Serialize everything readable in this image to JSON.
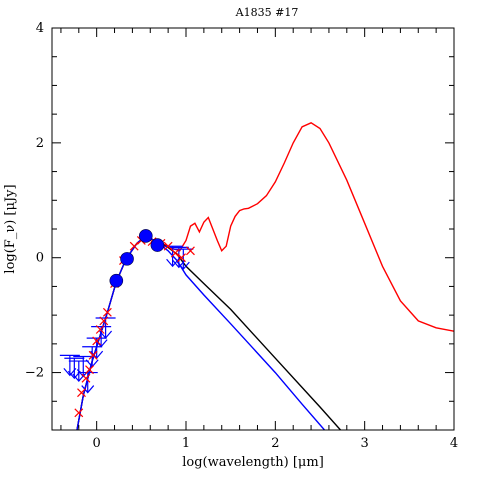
{
  "chart_data": {
    "type": "line",
    "title": "A1835  #17",
    "xlabel": "log(wavelength) [μm]",
    "ylabel": "log(F_ν) [μJy]",
    "xlim": [
      -0.5,
      4.0
    ],
    "ylim": [
      -3.0,
      4.0
    ],
    "xticks": [
      0,
      1,
      2,
      3,
      4
    ],
    "xtick_labels": [
      "0",
      "1",
      "2",
      "3",
      "4"
    ],
    "yticks": [
      -2,
      0,
      2,
      4
    ],
    "ytick_labels": [
      "−2",
      "0",
      "2",
      "4"
    ],
    "grid": false,
    "legend": "none",
    "series": [
      {
        "color": "#ff0000",
        "style": "line",
        "points": [
          [
            -0.22,
            -3.0
          ],
          [
            -0.15,
            -2.4
          ],
          [
            -0.05,
            -1.8
          ],
          [
            0.05,
            -1.3
          ],
          [
            0.12,
            -0.95
          ],
          [
            0.22,
            -0.42
          ],
          [
            0.33,
            -0.02
          ],
          [
            0.45,
            0.25
          ],
          [
            0.55,
            0.38
          ],
          [
            0.62,
            0.32
          ],
          [
            0.7,
            0.26
          ],
          [
            0.78,
            0.22
          ],
          [
            0.85,
            0.16
          ],
          [
            0.93,
            0.12
          ],
          [
            1.0,
            0.3
          ],
          [
            1.05,
            0.55
          ],
          [
            1.1,
            0.6
          ],
          [
            1.15,
            0.45
          ],
          [
            1.2,
            0.62
          ],
          [
            1.25,
            0.7
          ],
          [
            1.3,
            0.5
          ],
          [
            1.35,
            0.3
          ],
          [
            1.4,
            0.12
          ],
          [
            1.45,
            0.2
          ],
          [
            1.5,
            0.55
          ],
          [
            1.55,
            0.72
          ],
          [
            1.6,
            0.82
          ],
          [
            1.65,
            0.85
          ],
          [
            1.7,
            0.86
          ],
          [
            1.8,
            0.94
          ],
          [
            1.9,
            1.08
          ],
          [
            2.0,
            1.32
          ],
          [
            2.1,
            1.65
          ],
          [
            2.2,
            2.0
          ],
          [
            2.3,
            2.28
          ],
          [
            2.4,
            2.35
          ],
          [
            2.5,
            2.25
          ],
          [
            2.6,
            2.0
          ],
          [
            2.8,
            1.35
          ],
          [
            3.0,
            0.6
          ],
          [
            3.2,
            -0.15
          ],
          [
            3.4,
            -0.75
          ],
          [
            3.6,
            -1.1
          ],
          [
            3.8,
            -1.22
          ],
          [
            4.0,
            -1.28
          ]
        ]
      },
      {
        "color": "#000000",
        "style": "line",
        "points": [
          [
            -0.22,
            -3.0
          ],
          [
            -0.15,
            -2.4
          ],
          [
            -0.05,
            -1.8
          ],
          [
            0.05,
            -1.3
          ],
          [
            0.12,
            -0.95
          ],
          [
            0.22,
            -0.42
          ],
          [
            0.33,
            -0.02
          ],
          [
            0.45,
            0.25
          ],
          [
            0.55,
            0.38
          ],
          [
            0.62,
            0.32
          ],
          [
            0.7,
            0.26
          ],
          [
            0.8,
            0.18
          ],
          [
            0.9,
            0.06
          ],
          [
            1.0,
            -0.15
          ],
          [
            1.2,
            -0.45
          ],
          [
            1.5,
            -0.9
          ],
          [
            2.0,
            -1.75
          ],
          [
            2.5,
            -2.6
          ],
          [
            2.73,
            -3.0
          ]
        ]
      },
      {
        "color": "#0000ff",
        "style": "line",
        "points": [
          [
            -0.22,
            -3.0
          ],
          [
            -0.15,
            -2.4
          ],
          [
            -0.05,
            -1.8
          ],
          [
            0.05,
            -1.3
          ],
          [
            0.12,
            -0.95
          ],
          [
            0.22,
            -0.42
          ],
          [
            0.33,
            -0.02
          ],
          [
            0.45,
            0.25
          ],
          [
            0.55,
            0.38
          ],
          [
            0.62,
            0.32
          ],
          [
            0.7,
            0.24
          ],
          [
            0.8,
            0.12
          ],
          [
            0.9,
            -0.05
          ],
          [
            1.0,
            -0.3
          ],
          [
            1.2,
            -0.65
          ],
          [
            1.5,
            -1.15
          ],
          [
            2.0,
            -2.0
          ],
          [
            2.3,
            -2.55
          ],
          [
            2.55,
            -3.0
          ]
        ]
      }
    ],
    "detections": [
      [
        0.22,
        -0.4
      ],
      [
        0.34,
        -0.02
      ],
      [
        0.55,
        0.38
      ],
      [
        0.68,
        0.22
      ]
    ],
    "upper_limits": [
      [
        -0.3,
        -1.7
      ],
      [
        -0.25,
        -1.75
      ],
      [
        -0.2,
        -1.8
      ],
      [
        -0.15,
        -1.72
      ],
      [
        -0.1,
        -2.0
      ],
      [
        -0.05,
        -1.55
      ],
      [
        0.0,
        -1.4
      ],
      [
        0.05,
        -1.2
      ],
      [
        0.1,
        -1.05
      ],
      [
        0.85,
        0.2
      ],
      [
        0.92,
        0.18
      ],
      [
        0.97,
        0.15
      ]
    ],
    "crosses": [
      [
        -0.2,
        -2.7
      ],
      [
        -0.17,
        -2.35
      ],
      [
        -0.12,
        -2.1
      ],
      [
        -0.08,
        -1.95
      ],
      [
        -0.04,
        -1.7
      ],
      [
        0.0,
        -1.45
      ],
      [
        0.04,
        -1.25
      ],
      [
        0.08,
        -1.1
      ],
      [
        0.12,
        -0.95
      ],
      [
        0.2,
        -0.45
      ],
      [
        0.3,
        -0.05
      ],
      [
        0.42,
        0.2
      ],
      [
        0.5,
        0.3
      ],
      [
        0.62,
        0.28
      ],
      [
        0.72,
        0.25
      ],
      [
        0.8,
        0.2
      ],
      [
        0.88,
        0.08
      ],
      [
        0.95,
        0.0
      ],
      [
        1.05,
        0.12
      ]
    ]
  }
}
